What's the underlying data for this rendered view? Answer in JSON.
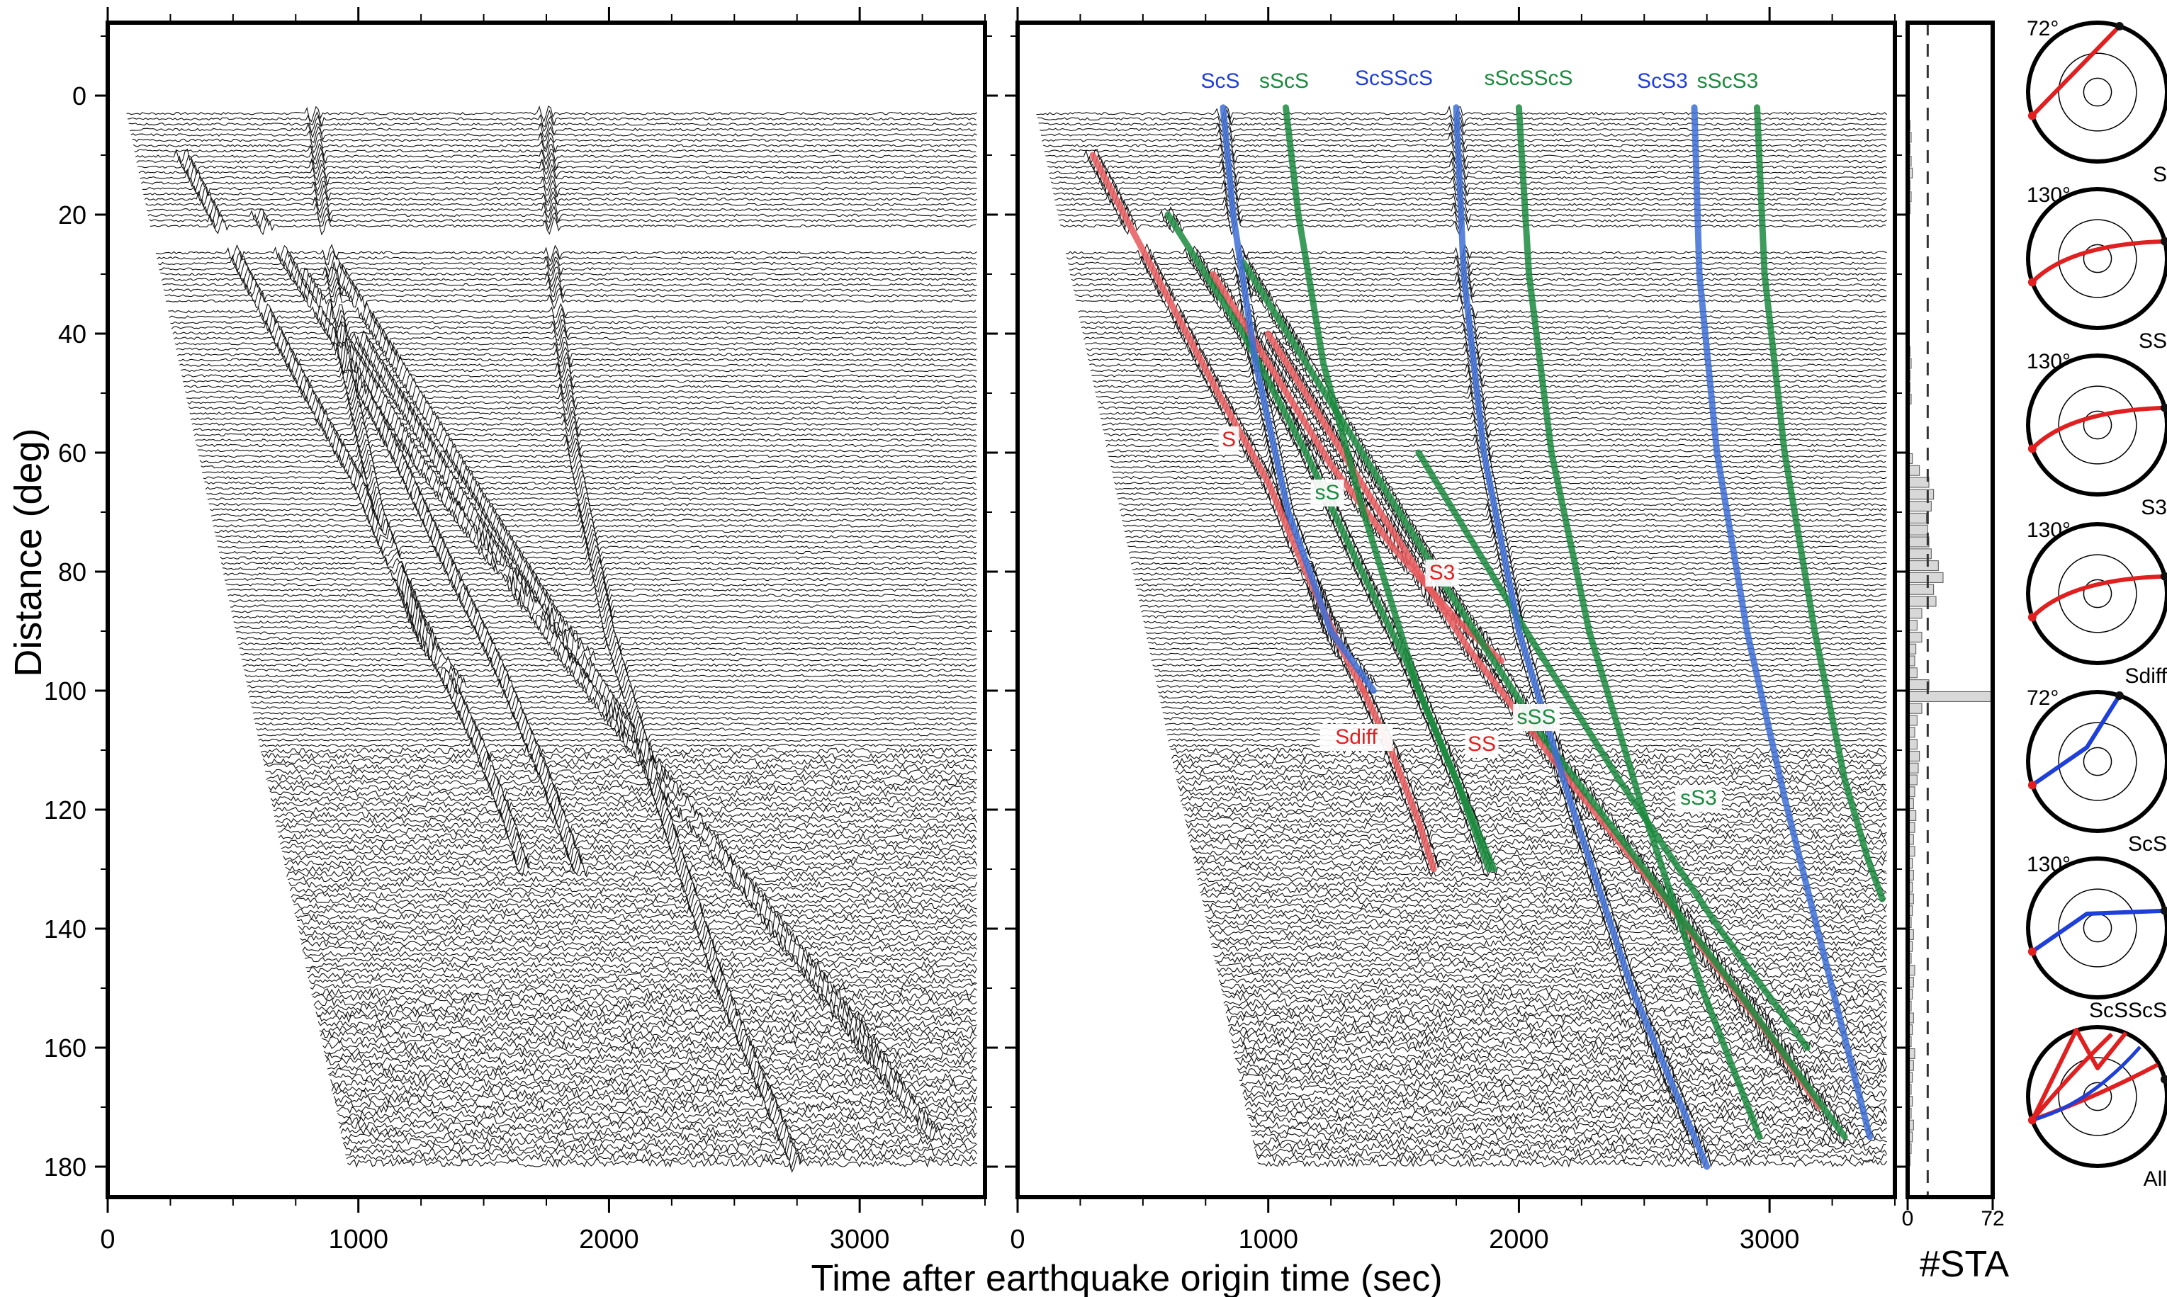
{
  "chart_data": [
    {
      "type": "line",
      "panel": "raw record section",
      "xlabel": "",
      "ylabel": "Distance (deg)",
      "xlim": [
        0,
        3500
      ],
      "ylim": [
        -15,
        185
      ],
      "y_inverted": true,
      "xticks": [
        0,
        1000,
        2000,
        3000
      ],
      "yticks": [
        0,
        20,
        40,
        60,
        80,
        100,
        120,
        140,
        160,
        180
      ],
      "grid": false
    },
    {
      "type": "line",
      "panel": "record section with predicted phase arrivals",
      "xlabel": "Time after earthquake origin time (sec)",
      "xlim": [
        0,
        3500
      ],
      "ylim": [
        -15,
        185
      ],
      "xticks": [
        0,
        1000,
        2000,
        3000
      ],
      "grid": false,
      "series": [
        {
          "name": "S",
          "color": "#e8595c",
          "x": [
            300,
            550,
            800,
            1000,
            1150,
            1280,
            1380
          ],
          "y": [
            10,
            30,
            50,
            65,
            80,
            92,
            100
          ]
        },
        {
          "name": "Sdiff",
          "color": "#e8595c",
          "x": [
            1380,
            1490,
            1600,
            1660
          ],
          "y": [
            100,
            110,
            122,
            130
          ]
        },
        {
          "name": "S3",
          "color": "#e8595c",
          "x": [
            780,
            1000,
            1250,
            1500,
            1750,
            1930
          ],
          "y": [
            30,
            45,
            62,
            76,
            88,
            95
          ]
        },
        {
          "name": "SS",
          "color": "#e8595c",
          "x": [
            1000,
            1400,
            1800,
            2200,
            2600,
            3000,
            3200
          ],
          "y": [
            40,
            67,
            93,
            115,
            136,
            158,
            170
          ]
        },
        {
          "name": "sS",
          "color": "#1b8a3e",
          "x": [
            600,
            900,
            1150,
            1350,
            1550,
            1750,
            1880
          ],
          "y": [
            20,
            40,
            60,
            78,
            95,
            115,
            130
          ]
        },
        {
          "name": "sSS",
          "color": "#1b8a3e",
          "x": [
            900,
            1300,
            1700,
            2100,
            2500,
            2900,
            3300
          ],
          "y": [
            28,
            55,
            82,
            108,
            130,
            152,
            175
          ]
        },
        {
          "name": "sS3",
          "color": "#1b8a3e",
          "x": [
            1600,
            2000,
            2400,
            2800,
            3150
          ],
          "y": [
            60,
            88,
            115,
            140,
            160
          ]
        },
        {
          "name": "ScS",
          "color": "#3d6fd6",
          "x": [
            820,
            860,
            950,
            1080,
            1250,
            1420
          ],
          "y": [
            2,
            20,
            45,
            70,
            90,
            100
          ]
        },
        {
          "name": "sScS",
          "color": "#1b8a3e",
          "x": [
            1070,
            1120,
            1220,
            1380,
            1600,
            1900
          ],
          "y": [
            2,
            20,
            45,
            70,
            100,
            130
          ]
        },
        {
          "name": "ScSScS",
          "color": "#3d6fd6",
          "x": [
            1750,
            1780,
            1860,
            2000,
            2200,
            2450,
            2750
          ],
          "y": [
            2,
            30,
            60,
            90,
            118,
            150,
            180
          ]
        },
        {
          "name": "sScSScS",
          "color": "#1b8a3e",
          "x": [
            2000,
            2040,
            2130,
            2280,
            2480,
            2730,
            2960
          ],
          "y": [
            2,
            30,
            60,
            90,
            118,
            150,
            175
          ]
        },
        {
          "name": "ScS3",
          "color": "#3d6fd6",
          "x": [
            2700,
            2720,
            2790,
            2910,
            3060,
            3250,
            3400
          ],
          "y": [
            2,
            30,
            60,
            90,
            118,
            150,
            175
          ]
        },
        {
          "name": "sScS3",
          "color": "#1b8a3e",
          "x": [
            2950,
            2980,
            3060,
            3180,
            3300,
            3390,
            3450
          ],
          "y": [
            2,
            30,
            60,
            90,
            115,
            128,
            135
          ]
        }
      ]
    },
    {
      "type": "bar",
      "panel": "station count histogram",
      "xlabel": "#STA",
      "xlim": [
        0,
        72
      ],
      "xticks": [
        0,
        72
      ],
      "reference_line": 17,
      "bin_distances": [
        5,
        7,
        9,
        11,
        13,
        15,
        17,
        19,
        43,
        45,
        47,
        49,
        51,
        61,
        63,
        65,
        67,
        69,
        71,
        73,
        75,
        77,
        79,
        81,
        83,
        85,
        87,
        89,
        91,
        93,
        95,
        97,
        99,
        101,
        103,
        105,
        107,
        109,
        111,
        113,
        115,
        117,
        119,
        121,
        123,
        125,
        127,
        129,
        131,
        133,
        135,
        137,
        139,
        141,
        143,
        145,
        147,
        149,
        151,
        153,
        155,
        157,
        159,
        161,
        163,
        165,
        167,
        169,
        171,
        173,
        175,
        177,
        179
      ],
      "counts": [
        2,
        3,
        2,
        3,
        4,
        2,
        3,
        2,
        2,
        3,
        2,
        2,
        3,
        4,
        10,
        18,
        22,
        20,
        16,
        17,
        18,
        20,
        26,
        30,
        22,
        24,
        12,
        8,
        12,
        7,
        6,
        8,
        18,
        72,
        12,
        8,
        6,
        8,
        10,
        9,
        8,
        6,
        5,
        7,
        6,
        5,
        6,
        4,
        5,
        4,
        5,
        4,
        3,
        5,
        4,
        3,
        6,
        5,
        4,
        3,
        5,
        4,
        3,
        6,
        5,
        4,
        3,
        4,
        3,
        5,
        4,
        3,
        2
      ]
    }
  ],
  "ray_diagrams": [
    {
      "angle_label": "72°",
      "phase_label": "S",
      "color": "#e02020"
    },
    {
      "angle_label": "130°",
      "phase_label": "SS",
      "color": "#e02020"
    },
    {
      "angle_label": "130°",
      "phase_label": "S3",
      "color": "#e02020"
    },
    {
      "angle_label": "130°",
      "phase_label": "Sdiff",
      "color": "#e02020"
    },
    {
      "angle_label": "72°",
      "phase_label": "ScS",
      "color": "#1e3fd8"
    },
    {
      "angle_label": "130°",
      "phase_label": "ScSScS",
      "color": "#1e3fd8"
    },
    {
      "angle_label": "",
      "phase_label": "All",
      "color": "#e02020"
    }
  ],
  "phase_labels": [
    {
      "text": "ScS",
      "color": "#1e3fd8",
      "boxed": false
    },
    {
      "text": "sScS",
      "color": "#1b8a3e",
      "boxed": false
    },
    {
      "text": "ScSScS",
      "color": "#1e3fd8",
      "boxed": false
    },
    {
      "text": "sScSScS",
      "color": "#1b8a3e",
      "boxed": false
    },
    {
      "text": "ScS3",
      "color": "#1e3fd8",
      "boxed": false
    },
    {
      "text": "sScS3",
      "color": "#1b8a3e",
      "boxed": false
    },
    {
      "text": "S",
      "color": "#e02020",
      "boxed": true
    },
    {
      "text": "sS",
      "color": "#1b8a3e",
      "boxed": true
    },
    {
      "text": "S3",
      "color": "#e02020",
      "boxed": true
    },
    {
      "text": "Sdiff",
      "color": "#e02020",
      "boxed": true
    },
    {
      "text": "SS",
      "color": "#e02020",
      "boxed": true
    },
    {
      "text": "sSS",
      "color": "#1b8a3e",
      "boxed": true
    },
    {
      "text": "sS3",
      "color": "#1b8a3e",
      "boxed": true
    }
  ]
}
